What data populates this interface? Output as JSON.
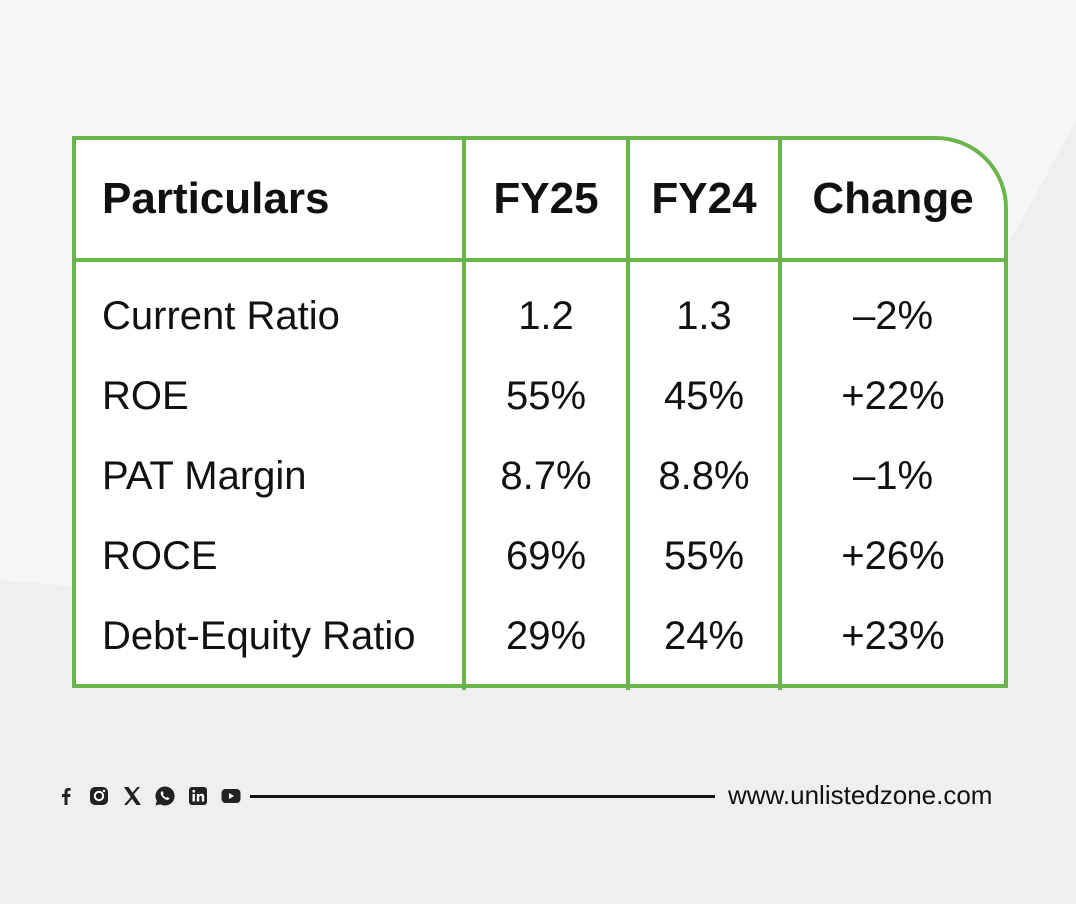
{
  "table": {
    "headers": [
      "Particulars",
      "FY25",
      "FY24",
      "Change"
    ],
    "rows": [
      [
        "Current Ratio",
        "1.2",
        "1.3",
        "–2%"
      ],
      [
        "ROE",
        "55%",
        "45%",
        "+22%"
      ],
      [
        "PAT Margin",
        "8.7%",
        "8.8%",
        "–1%"
      ],
      [
        "ROCE",
        "69%",
        "55%",
        "+26%"
      ],
      [
        "Debt-Equity Ratio",
        "29%",
        "24%",
        "+23%"
      ]
    ]
  },
  "footer": {
    "social_icons": [
      "facebook-icon",
      "instagram-icon",
      "x-icon",
      "whatsapp-icon",
      "linkedin-icon",
      "youtube-icon"
    ],
    "website": "www.unlistedzone.com"
  },
  "colors": {
    "accent_green": "#6ab64c",
    "background": "#efefef",
    "text": "#111111"
  }
}
